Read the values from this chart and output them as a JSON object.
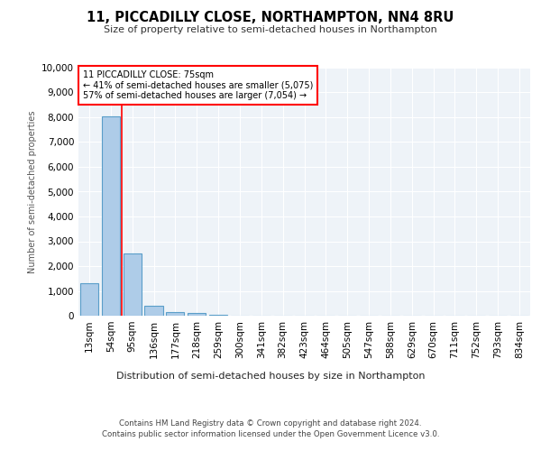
{
  "title": "11, PICCADILLY CLOSE, NORTHAMPTON, NN4 8RU",
  "subtitle": "Size of property relative to semi-detached houses in Northampton",
  "xlabel_bottom": "Distribution of semi-detached houses by size in Northampton",
  "ylabel": "Number of semi-detached properties",
  "categories": [
    "13sqm",
    "54sqm",
    "95sqm",
    "136sqm",
    "177sqm",
    "218sqm",
    "259sqm",
    "300sqm",
    "341sqm",
    "382sqm",
    "423sqm",
    "464sqm",
    "505sqm",
    "547sqm",
    "588sqm",
    "629sqm",
    "670sqm",
    "711sqm",
    "752sqm",
    "793sqm",
    "834sqm"
  ],
  "values": [
    1310,
    8030,
    2510,
    390,
    145,
    95,
    30,
    5,
    0,
    0,
    0,
    0,
    0,
    0,
    0,
    0,
    0,
    0,
    0,
    0,
    0
  ],
  "bar_color": "#aecce8",
  "bar_edge_color": "#5a9ec9",
  "red_line_x": 1.52,
  "annotation_title": "11 PICCADILLY CLOSE: 75sqm",
  "annotation_line1": "← 41% of semi-detached houses are smaller (5,075)",
  "annotation_line2": "57% of semi-detached houses are larger (7,054) →",
  "ylim": [
    0,
    10000
  ],
  "yticks": [
    0,
    1000,
    2000,
    3000,
    4000,
    5000,
    6000,
    7000,
    8000,
    9000,
    10000
  ],
  "bg_color": "#eef3f8",
  "grid_color": "#ffffff",
  "footer1": "Contains HM Land Registry data © Crown copyright and database right 2024.",
  "footer2": "Contains public sector information licensed under the Open Government Licence v3.0."
}
